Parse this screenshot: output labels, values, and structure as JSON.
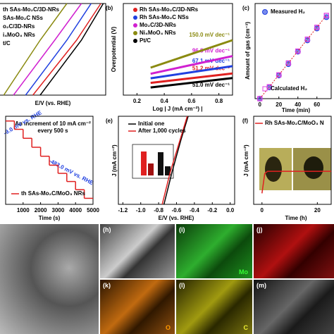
{
  "a": {
    "xlabel": "E/V (vs. RHE)",
    "xlim": [
      -0.45,
      0
    ],
    "ylim": [
      -100,
      0
    ],
    "series": [
      {
        "name": "th SAs-Mo₂C/3D-NRs",
        "color": "#e02020",
        "x": [
          -0.3,
          -0.12,
          -0.02
        ],
        "values": [
          -100,
          -40,
          0
        ]
      },
      {
        "name": "SAs-Mo₂C NSs",
        "color": "#2040e0",
        "x": [
          -0.33,
          -0.16,
          -0.06
        ],
        "values": [
          -100,
          -40,
          0
        ]
      },
      {
        "name": "o₂C/3D-NRs",
        "color": "#d020d0",
        "x": [
          -0.38,
          -0.21,
          -0.1
        ],
        "values": [
          -100,
          -40,
          0
        ]
      },
      {
        "name": "i₄MoO₄ NRs",
        "color": "#8a8a10",
        "x": [
          -0.42,
          -0.27,
          -0.16
        ],
        "values": [
          -100,
          -40,
          0
        ]
      },
      {
        "name": "t/C",
        "color": "#000000",
        "x": [
          -0.27,
          -0.1,
          -0.01
        ],
        "values": [
          -100,
          -40,
          0
        ]
      }
    ]
  },
  "b": {
    "label": "(b)",
    "ylabel": "Overpotential (V)",
    "xlabel": "Log | J (mA cm⁻²) |",
    "xlim": [
      0.1,
      0.9
    ],
    "ylim": [
      0,
      0.3
    ],
    "xticks": [
      0.2,
      0.4,
      0.6,
      0.8
    ],
    "series": [
      {
        "name": "Rh SAs-Mo₂C/3D-NRs",
        "color": "#e02020",
        "slope": "51.2 mV dec⁻¹",
        "x": [
          0.3,
          0.9
        ],
        "values": [
          0.04,
          0.071
        ]
      },
      {
        "name": "Rh SAs-Mo₂C NSs",
        "color": "#2040e0",
        "slope": "67.1 mV dec⁻¹",
        "x": [
          0.3,
          0.9
        ],
        "values": [
          0.055,
          0.095
        ]
      },
      {
        "name": "Mo₂C/3D-NRs",
        "color": "#d020d0",
        "slope": "96.8 mV dec⁻¹",
        "x": [
          0.3,
          0.9
        ],
        "values": [
          0.07,
          0.128
        ]
      },
      {
        "name": "Ni₄MoO₄ NRs",
        "color": "#8a8a10",
        "slope": "150.0 mV dec⁻¹",
        "x": [
          0.3,
          0.9
        ],
        "values": [
          0.09,
          0.18
        ]
      },
      {
        "name": "Pt/C",
        "color": "#000000",
        "slope": "51.0 mV dec⁻¹",
        "x": [
          0.3,
          0.9
        ],
        "values": [
          0.025,
          0.056
        ]
      }
    ]
  },
  "c": {
    "label": "(c)",
    "ylabel": "Amount of gas (cm⁻³)",
    "xlabel": "Time (min)",
    "xlim": [
      -5,
      75
    ],
    "ylim": [
      0,
      16
    ],
    "xticks": [
      0,
      20,
      40,
      60
    ],
    "series": [
      {
        "name": "Measured H₂",
        "color": "#2040e0",
        "marker": "circle",
        "x": [
          0,
          10,
          20,
          30,
          40,
          50,
          60,
          70
        ],
        "values": [
          0,
          1.9,
          3.9,
          5.8,
          7.9,
          9.8,
          11.8,
          13.7
        ]
      },
      {
        "name": "Calculated H₂",
        "color": "#e040e0",
        "marker": "square",
        "x": [
          0,
          10,
          20,
          30,
          40,
          50,
          60,
          70
        ],
        "values": [
          0,
          2,
          4,
          6,
          8,
          10,
          12,
          14
        ]
      }
    ]
  },
  "d": {
    "xlabel": "Time (s)",
    "xlim": [
      0,
      5000
    ],
    "ylim": [
      -520,
      20
    ],
    "xticks": [
      1000,
      2000,
      3000,
      4000,
      5000
    ],
    "notes": [
      "An increment of 10 mA cm⁻²",
      "every 500 s",
      "-9.0 mV vs. RHE",
      "-483.0 mV vs. RHE"
    ],
    "series": [
      {
        "name": "th SAs-Mo₂C/MoO₃ NRs",
        "color": "#e02020",
        "x": [
          0,
          500,
          1000,
          1500,
          2000,
          2500,
          3000,
          3500,
          4000,
          4500
        ],
        "values": [
          -9,
          -60,
          -115,
          -170,
          -225,
          -280,
          -330,
          -380,
          -430,
          -483
        ]
      }
    ]
  },
  "e": {
    "label": "(e)",
    "ylabel": "J (mA cm⁻²)",
    "xlabel": "E/V (vs. RHE)",
    "xlim": [
      -1.25,
      0.05
    ],
    "ylim": [
      -300,
      0
    ],
    "xticks": [
      {
        "value": -1.2,
        "label": "-1.2"
      },
      {
        "value": -1,
        "label": "-1.0"
      },
      -0.8,
      -0.6,
      -0.4,
      -0.2,
      {
        "value": 0,
        "label": "0.0"
      }
    ],
    "series": [
      {
        "name": "Initial one",
        "color": "#000000",
        "x": [
          -0.74,
          -0.65,
          -0.55,
          -0.47
        ],
        "values": [
          -300,
          -190,
          -80,
          0
        ]
      },
      {
        "name": "After 1,000 cycles",
        "color": "#e02020",
        "x": [
          -0.76,
          -0.67,
          -0.56,
          -0.48
        ],
        "values": [
          -300,
          -190,
          -80,
          0
        ]
      }
    ]
  },
  "f": {
    "label": "(f)",
    "ylabel": "J (mA cm⁻²)",
    "xlabel": "Time (h)",
    "xlim": [
      -3,
      25
    ],
    "ylim": [
      -80,
      0
    ],
    "xticks": [
      0,
      20
    ],
    "series": [
      {
        "name": "Rh SAs-Mo₂C/MoO₃ N",
        "color": "#e02020",
        "x": [
          0,
          1,
          2,
          5,
          10,
          20,
          25
        ],
        "values": [
          -70,
          -52,
          -50,
          -50,
          -50,
          -50,
          -50
        ]
      }
    ]
  },
  "images": {
    "h": "(h)",
    "i": "(i)",
    "i_el": "Mo",
    "j": "(j)",
    "k": "(k)",
    "k_el": "O",
    "l": "(l)",
    "l_el": "C",
    "m": "(m)"
  }
}
